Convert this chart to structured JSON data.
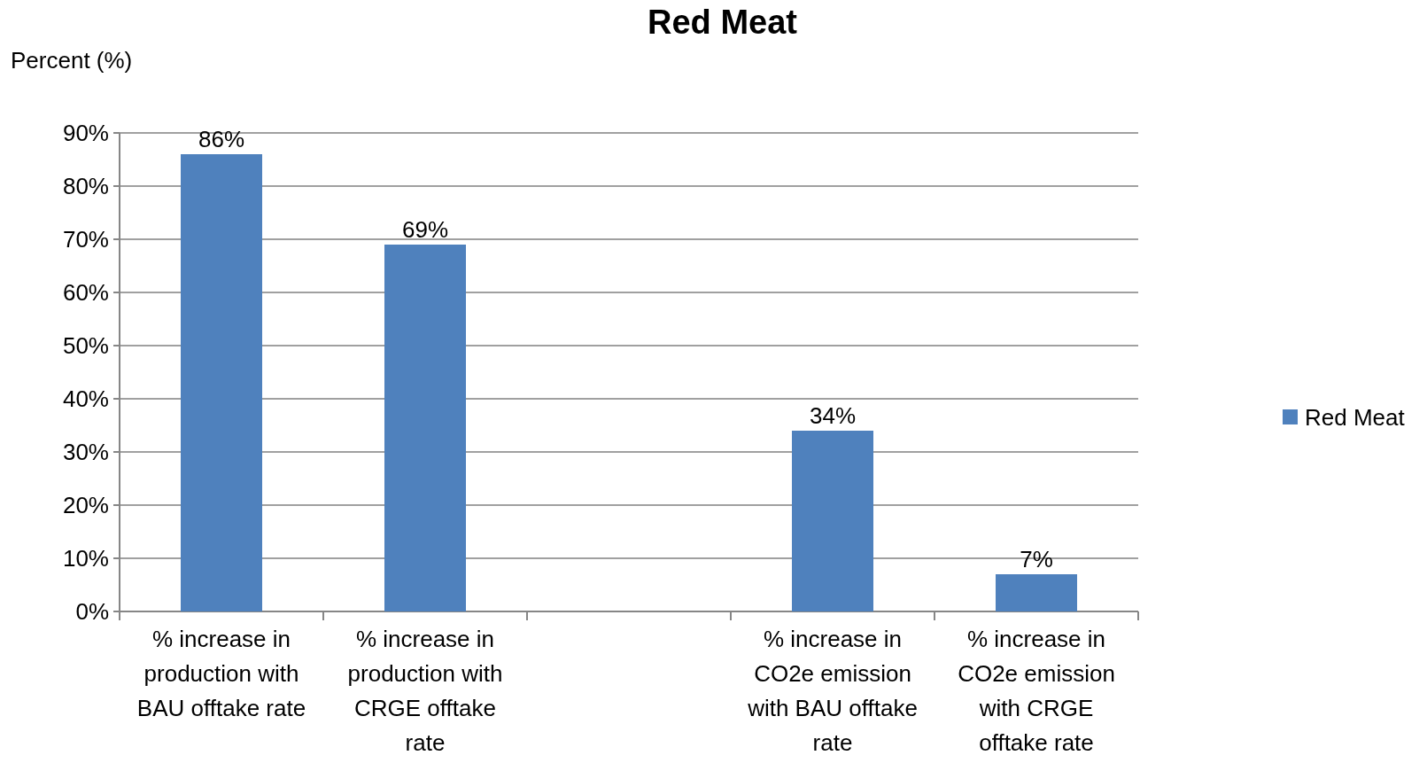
{
  "chart_data": {
    "type": "bar",
    "title": "Red Meat",
    "ylabel": "Percent (%)",
    "categories": [
      "% increase in production with BAU offtake rate",
      "% increase in production with CRGE offtake rate",
      null,
      "% increase in CO2e emission with BAU offtake rate",
      "% increase in CO2e emission with CRGE offtake rate"
    ],
    "series": [
      {
        "name": "Red Meat",
        "color": "#4f81bd",
        "values": [
          86,
          69,
          null,
          34,
          7
        ],
        "value_labels": [
          "86%",
          "69%",
          null,
          "34%",
          "7%"
        ]
      }
    ],
    "ylim": [
      0,
      90
    ],
    "yticks": [
      {
        "value": 0,
        "label": "0%"
      },
      {
        "value": 10,
        "label": "10%"
      },
      {
        "value": 20,
        "label": "20%"
      },
      {
        "value": 30,
        "label": "30%"
      },
      {
        "value": 40,
        "label": "40%"
      },
      {
        "value": 50,
        "label": "50%"
      },
      {
        "value": 60,
        "label": "60%"
      },
      {
        "value": 70,
        "label": "70%"
      },
      {
        "value": 80,
        "label": "80%"
      },
      {
        "value": 90,
        "label": "90%"
      }
    ],
    "grid": "y",
    "legend": "right"
  }
}
